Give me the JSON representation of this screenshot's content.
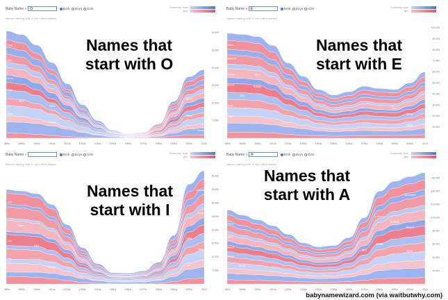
{
  "credit": "babynamewizard.com (via waitbutwhy.com)",
  "toolbar": {
    "label": "Baby Name »",
    "radios": [
      "Both",
      "Boys",
      "Girls"
    ],
    "legend": [
      "Commonly: boys",
      "girls"
    ]
  },
  "subtitle": "Names starting with 'X' per million babies",
  "colors": {
    "boy": "#9db4ef",
    "girl": "#f2909b",
    "boy_light": "#c5d3f5",
    "girl_light": "#f8c4cb"
  },
  "chart_data": [
    {
      "type": "area",
      "title": "Names that start with O",
      "query": "O",
      "x": [
        "1880s",
        "1890s",
        "1900s",
        "1910s",
        "1920s",
        "1930s",
        "1940s",
        "1950s",
        "1960s",
        "1970s",
        "1980s",
        "1990s",
        "2000s",
        "2010"
      ],
      "y_ticks": [
        "5,000",
        "10,000",
        "15,000",
        "20,000",
        "25,000",
        "30,000"
      ],
      "ylim": [
        0,
        33000
      ],
      "total": [
        30500,
        29500,
        26500,
        21500,
        15500,
        9500,
        5000,
        2200,
        1100,
        1600,
        4000,
        10500,
        17500,
        19500
      ],
      "girl_share": [
        0.45,
        0.45,
        0.4,
        0.35,
        0.3,
        0.25,
        0.25,
        0.3,
        0.35,
        0.5,
        0.6,
        0.55,
        0.5,
        0.45
      ],
      "labels": [
        {
          "text": "Ollie",
          "at": [
            0,
            0.86
          ]
        },
        {
          "text": "Otto",
          "at": [
            0,
            0.72
          ]
        },
        {
          "text": "Oliver",
          "at": [
            0,
            0.55
          ]
        },
        {
          "text": "Ora",
          "at": [
            0,
            0.44
          ]
        },
        {
          "text": "Olive",
          "at": [
            1,
            0.35
          ]
        },
        {
          "text": "Oscar",
          "at": [
            0,
            0.22
          ]
        },
        {
          "text": "Opal",
          "at": [
            3,
            0.42
          ]
        },
        {
          "text": "Orville",
          "at": [
            3,
            0.2
          ]
        },
        {
          "text": "Owen",
          "at": [
            12,
            0.62
          ]
        },
        {
          "text": "Olivia",
          "at": [
            12,
            0.35
          ]
        },
        {
          "text": "Oscar",
          "at": [
            13,
            0.1
          ]
        }
      ]
    },
    {
      "type": "area",
      "title": "Names that start with E",
      "query": "E",
      "x": [
        "1880s",
        "1890s",
        "1900s",
        "1910s",
        "1920s",
        "1930s",
        "1940s",
        "1950s",
        "1960s",
        "1970s",
        "1980s",
        "1990s",
        "2000s",
        "2010"
      ],
      "y_ticks": [
        "10,000",
        "20,000",
        "30,000",
        "40,000",
        "50,000",
        "60,000",
        "70,000",
        "80,000",
        "90,000",
        "100,000"
      ],
      "ylim": [
        0,
        105000
      ],
      "total": [
        95000,
        94000,
        92000,
        84000,
        68000,
        56000,
        44000,
        39000,
        42000,
        47000,
        45000,
        44000,
        50000,
        60000
      ],
      "girl_share": [
        0.55,
        0.55,
        0.55,
        0.52,
        0.5,
        0.45,
        0.45,
        0.45,
        0.45,
        0.5,
        0.55,
        0.55,
        0.5,
        0.5
      ],
      "labels": [
        {
          "text": "Edna",
          "at": [
            0,
            0.88
          ]
        },
        {
          "text": "Elizabeth",
          "at": [
            0,
            0.75
          ]
        },
        {
          "text": "Edward",
          "at": [
            0,
            0.6
          ]
        },
        {
          "text": "Emma",
          "at": [
            0,
            0.5
          ]
        },
        {
          "text": "Ella",
          "at": [
            1,
            0.4
          ]
        },
        {
          "text": "Edith",
          "at": [
            0,
            0.3
          ]
        },
        {
          "text": "Earl",
          "at": [
            0,
            0.2
          ]
        },
        {
          "text": "Ethel",
          "at": [
            2,
            0.62
          ]
        },
        {
          "text": "Evelyn",
          "at": [
            2,
            0.5
          ]
        },
        {
          "text": "Eric",
          "at": [
            11,
            0.6
          ]
        },
        {
          "text": "Emily",
          "at": [
            12,
            0.42
          ]
        },
        {
          "text": "Ethan",
          "at": [
            12,
            0.22
          ]
        }
      ]
    },
    {
      "type": "area",
      "title": "Names that start with I",
      "query": "",
      "x": [
        "1880s",
        "1890s",
        "1900s",
        "1910s",
        "1920s",
        "1930s",
        "1940s",
        "1950s",
        "1960s",
        "1970s",
        "1980s",
        "1990s",
        "2000s",
        "2010"
      ],
      "y_ticks": [
        "5,000",
        "10,000",
        "15,000",
        "20,000",
        "25,000",
        "30,000",
        "35,000",
        "40,000"
      ],
      "ylim": [
        0,
        43000
      ],
      "total": [
        35000,
        34500,
        33500,
        29500,
        22000,
        13500,
        7500,
        4200,
        4000,
        4800,
        8000,
        18000,
        37000,
        42000
      ],
      "girl_share": [
        0.75,
        0.75,
        0.7,
        0.65,
        0.55,
        0.45,
        0.35,
        0.3,
        0.3,
        0.35,
        0.4,
        0.45,
        0.5,
        0.5
      ],
      "labels": [
        {
          "text": "Ida",
          "at": [
            0,
            0.86
          ]
        },
        {
          "text": "Irene",
          "at": [
            1,
            0.62
          ]
        },
        {
          "text": "Iva",
          "at": [
            0,
            0.45
          ]
        },
        {
          "text": "Inez",
          "at": [
            2,
            0.42
          ]
        },
        {
          "text": "Ira",
          "at": [
            0,
            0.26
          ]
        },
        {
          "text": "Irving",
          "at": [
            3,
            0.2
          ]
        },
        {
          "text": "Isabella",
          "at": [
            13,
            0.82
          ]
        },
        {
          "text": "Isaac",
          "at": [
            13,
            0.62
          ]
        },
        {
          "text": "Isabel",
          "at": [
            12,
            0.45
          ]
        },
        {
          "text": "Ivan",
          "at": [
            13,
            0.3
          ]
        },
        {
          "text": "Ian",
          "at": [
            12,
            0.18
          ]
        }
      ]
    },
    {
      "type": "area",
      "title": "Names that start with A",
      "query": "A",
      "x": [
        "1880s",
        "1890s",
        "1900s",
        "1910s",
        "1920s",
        "1930s",
        "1940s",
        "1950s",
        "1960s",
        "1970s",
        "1980s",
        "1990s",
        "2000s",
        "2010"
      ],
      "y_ticks": [
        "20,000",
        "40,000",
        "60,000",
        "80,000",
        "100,000",
        "120,000",
        "140,000",
        "160,000"
      ],
      "ylim": [
        0,
        175000
      ],
      "total": [
        112000,
        104000,
        97000,
        88000,
        75000,
        62000,
        56000,
        58000,
        70000,
        100000,
        140000,
        155000,
        162000,
        168000
      ],
      "girl_share": [
        0.55,
        0.55,
        0.55,
        0.55,
        0.5,
        0.5,
        0.5,
        0.5,
        0.5,
        0.55,
        0.55,
        0.55,
        0.55,
        0.55
      ],
      "labels": [
        {
          "text": "Anna",
          "at": [
            0,
            0.8
          ]
        },
        {
          "text": "Alice",
          "at": [
            0,
            0.62
          ]
        },
        {
          "text": "Albert",
          "at": [
            0,
            0.48
          ]
        },
        {
          "text": "Arthur",
          "at": [
            0,
            0.36
          ]
        },
        {
          "text": "Annie",
          "at": [
            1,
            0.25
          ]
        },
        {
          "text": "Amy",
          "at": [
            9,
            0.5
          ]
        },
        {
          "text": "Anthony",
          "at": [
            10,
            0.72
          ]
        },
        {
          "text": "Andrew",
          "at": [
            11,
            0.6
          ]
        },
        {
          "text": "Ashley",
          "at": [
            10,
            0.42
          ]
        },
        {
          "text": "Alexander",
          "at": [
            12,
            0.82
          ]
        },
        {
          "text": "Abigail",
          "at": [
            12,
            0.52
          ]
        },
        {
          "text": "Aiden",
          "at": [
            12,
            0.3
          ]
        }
      ]
    }
  ]
}
